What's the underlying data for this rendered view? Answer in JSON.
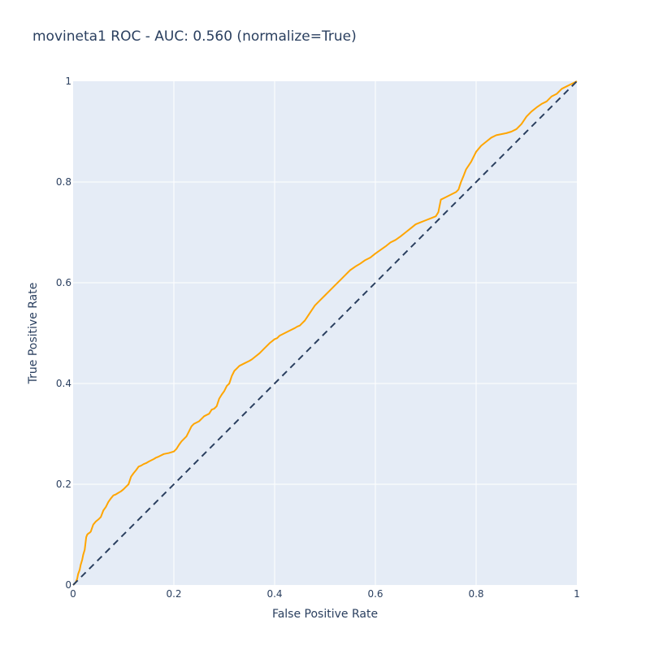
{
  "chart_data": {
    "type": "line",
    "title": "movineta1 ROC - AUC: 0.560 (normalize=True)",
    "xlabel": "False Positive Rate",
    "ylabel": "True Positive Rate",
    "xlim": [
      0,
      1
    ],
    "ylim": [
      0,
      1
    ],
    "x_ticks": [
      {
        "value": 0,
        "label": "0"
      },
      {
        "value": 0.2,
        "label": "0.2"
      },
      {
        "value": 0.4,
        "label": "0.4"
      },
      {
        "value": 0.6,
        "label": "0.6"
      },
      {
        "value": 0.8,
        "label": "0.8"
      },
      {
        "value": 1,
        "label": "1"
      }
    ],
    "y_ticks": [
      {
        "value": 0,
        "label": "0"
      },
      {
        "value": 0.2,
        "label": "0.2"
      },
      {
        "value": 0.4,
        "label": "0.4"
      },
      {
        "value": 0.6,
        "label": "0.6"
      },
      {
        "value": 0.8,
        "label": "0.8"
      },
      {
        "value": 1,
        "label": "1"
      }
    ],
    "grid": true,
    "legend": "none",
    "colors": {
      "plot_background": "#e5ecf6",
      "grid": "#ffffff",
      "roc": "#ffa500",
      "diagonal": "#2a3f5f",
      "text": "#2a3f5f"
    },
    "series": [
      {
        "style": "solid-step",
        "x": [
          0,
          0.005,
          0.008,
          0.01,
          0.013,
          0.015,
          0.018,
          0.02,
          0.023,
          0.026,
          0.028,
          0.03,
          0.033,
          0.035,
          0.04,
          0.045,
          0.05,
          0.055,
          0.06,
          0.065,
          0.07,
          0.075,
          0.08,
          0.085,
          0.09,
          0.095,
          0.1,
          0.105,
          0.11,
          0.115,
          0.12,
          0.125,
          0.13,
          0.135,
          0.14,
          0.145,
          0.15,
          0.16,
          0.165,
          0.17,
          0.18,
          0.19,
          0.2,
          0.205,
          0.21,
          0.215,
          0.22,
          0.225,
          0.23,
          0.235,
          0.24,
          0.25,
          0.255,
          0.26,
          0.27,
          0.275,
          0.28,
          0.285,
          0.29,
          0.295,
          0.3,
          0.305,
          0.31,
          0.315,
          0.32,
          0.325,
          0.33,
          0.34,
          0.35,
          0.355,
          0.36,
          0.37,
          0.375,
          0.38,
          0.39,
          0.4,
          0.405,
          0.41,
          0.42,
          0.43,
          0.44,
          0.445,
          0.45,
          0.455,
          0.46,
          0.47,
          0.48,
          0.49,
          0.5,
          0.51,
          0.52,
          0.53,
          0.54,
          0.55,
          0.56,
          0.57,
          0.58,
          0.59,
          0.6,
          0.61,
          0.62,
          0.63,
          0.64,
          0.65,
          0.66,
          0.67,
          0.68,
          0.69,
          0.7,
          0.71,
          0.72,
          0.725,
          0.73,
          0.74,
          0.75,
          0.76,
          0.765,
          0.77,
          0.775,
          0.78,
          0.79,
          0.795,
          0.8,
          0.81,
          0.82,
          0.83,
          0.84,
          0.85,
          0.86,
          0.87,
          0.88,
          0.89,
          0.9,
          0.91,
          0.92,
          0.93,
          0.94,
          0.95,
          0.96,
          0.97,
          0.98,
          0.99,
          1.0
        ],
        "y": [
          0,
          0.005,
          0.012,
          0.022,
          0.03,
          0.04,
          0.05,
          0.06,
          0.07,
          0.095,
          0.1,
          0.102,
          0.104,
          0.106,
          0.12,
          0.126,
          0.13,
          0.135,
          0.148,
          0.155,
          0.165,
          0.172,
          0.178,
          0.18,
          0.183,
          0.186,
          0.19,
          0.195,
          0.2,
          0.215,
          0.222,
          0.228,
          0.235,
          0.237,
          0.24,
          0.242,
          0.245,
          0.25,
          0.253,
          0.255,
          0.26,
          0.262,
          0.265,
          0.27,
          0.278,
          0.285,
          0.29,
          0.295,
          0.305,
          0.315,
          0.32,
          0.325,
          0.33,
          0.335,
          0.34,
          0.348,
          0.35,
          0.355,
          0.37,
          0.378,
          0.385,
          0.395,
          0.4,
          0.415,
          0.425,
          0.43,
          0.435,
          0.44,
          0.445,
          0.448,
          0.452,
          0.46,
          0.465,
          0.47,
          0.48,
          0.488,
          0.49,
          0.495,
          0.5,
          0.505,
          0.51,
          0.513,
          0.515,
          0.52,
          0.525,
          0.54,
          0.555,
          0.565,
          0.575,
          0.585,
          0.595,
          0.605,
          0.615,
          0.625,
          0.632,
          0.638,
          0.645,
          0.65,
          0.658,
          0.665,
          0.672,
          0.68,
          0.685,
          0.692,
          0.7,
          0.708,
          0.716,
          0.72,
          0.724,
          0.728,
          0.732,
          0.74,
          0.765,
          0.77,
          0.775,
          0.78,
          0.785,
          0.8,
          0.812,
          0.825,
          0.84,
          0.85,
          0.86,
          0.872,
          0.88,
          0.888,
          0.893,
          0.895,
          0.897,
          0.9,
          0.905,
          0.915,
          0.93,
          0.94,
          0.948,
          0.955,
          0.96,
          0.97,
          0.975,
          0.985,
          0.99,
          0.995,
          1.0
        ]
      },
      {
        "style": "dashed-diagonal",
        "x": [
          0,
          1
        ],
        "y": [
          0,
          1
        ]
      }
    ]
  }
}
